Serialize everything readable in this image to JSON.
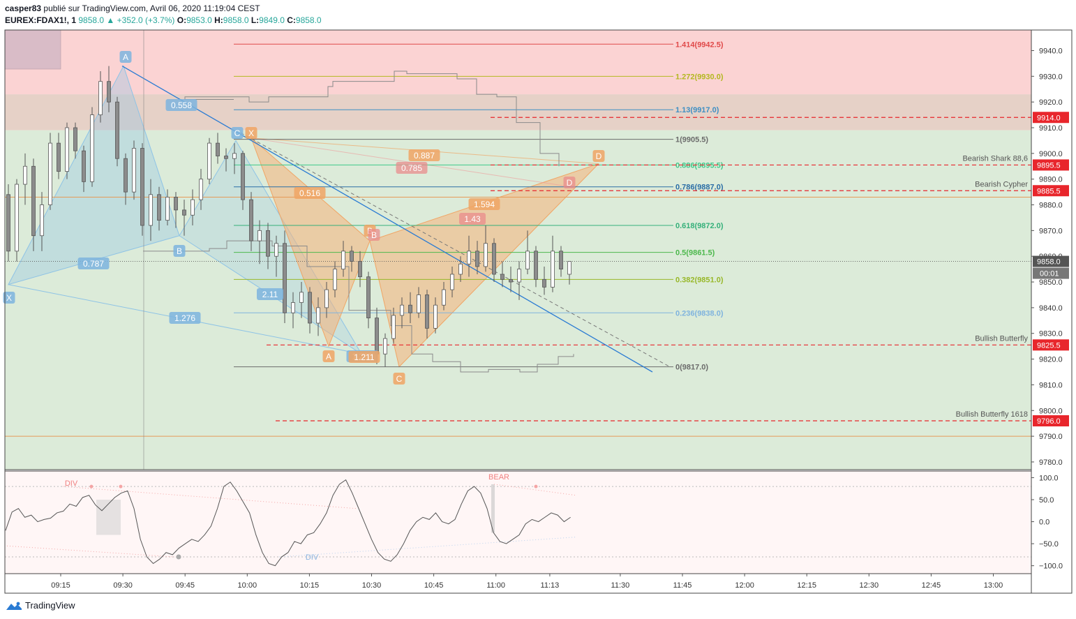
{
  "header": {
    "author": "casper83",
    "published_text": "publié sur TradingView.com, Avril 06, 2020 11:19:04 CEST",
    "symbol": "EUREX:FDAX1!, 1",
    "last": "9858.0",
    "change": "+352.0 (+3.7%)",
    "open_label": "O:",
    "open": "9853.0",
    "high_label": "H:",
    "high": "9858.0",
    "low_label": "L:",
    "low": "9849.0",
    "close_label": "C:",
    "close": "9858.0"
  },
  "footer": {
    "brand": "TradingView"
  },
  "colors": {
    "up": "#26a69a",
    "down": "#ef5350",
    "candle": "#8c8c8c",
    "red_zone": "#fbd3d3",
    "green_zone": "#dcebd9",
    "blue_pattern": "#8ec3e6",
    "orange_pattern": "#f5b27a",
    "trendline": "#2a7bd3",
    "price_tag": "#e8262c"
  },
  "chart_data": [
    {
      "type": "candlestick",
      "symbol": "EUREX:FDAX1!",
      "interval": "1",
      "x_ticks": [
        "09:15",
        "09:30",
        "09:45",
        "10:00",
        "10:15",
        "10:30",
        "10:45",
        "11:00",
        "11:13",
        "11:30",
        "11:45",
        "12:00",
        "12:15",
        "12:30",
        "12:45",
        "13:00"
      ],
      "y_ticks": [
        "9780.0",
        "9790.0",
        "9800.0",
        "9810.0",
        "9820.0",
        "9830.0",
        "9840.0",
        "9850.0",
        "9860.0",
        "9870.0",
        "9880.0",
        "9890.0",
        "9900.0",
        "9910.0",
        "9920.0",
        "9930.0",
        "9940.0"
      ],
      "ylim": [
        9777,
        9948
      ],
      "last_price": "9858.0",
      "countdown": "00:01",
      "candles": [
        {
          "t": "09:06",
          "o": 9884,
          "h": 9888,
          "l": 9858,
          "c": 9862
        },
        {
          "t": "09:08",
          "o": 9862,
          "h": 9890,
          "l": 9858,
          "c": 9888
        },
        {
          "t": "09:10",
          "o": 9888,
          "h": 9900,
          "l": 9880,
          "c": 9895
        },
        {
          "t": "09:12",
          "o": 9895,
          "h": 9898,
          "l": 9862,
          "c": 9868
        },
        {
          "t": "09:14",
          "o": 9868,
          "h": 9885,
          "l": 9862,
          "c": 9880
        },
        {
          "t": "09:16",
          "o": 9880,
          "h": 9908,
          "l": 9878,
          "c": 9904
        },
        {
          "t": "09:18",
          "o": 9904,
          "h": 9908,
          "l": 9890,
          "c": 9893
        },
        {
          "t": "09:20",
          "o": 9893,
          "h": 9912,
          "l": 9890,
          "c": 9910
        },
        {
          "t": "09:22",
          "o": 9910,
          "h": 9912,
          "l": 9898,
          "c": 9901
        },
        {
          "t": "09:24",
          "o": 9901,
          "h": 9903,
          "l": 9885,
          "c": 9889
        },
        {
          "t": "09:26",
          "o": 9889,
          "h": 9918,
          "l": 9887,
          "c": 9915
        },
        {
          "t": "09:28",
          "o": 9915,
          "h": 9932,
          "l": 9912,
          "c": 9928
        },
        {
          "t": "09:30",
          "o": 9928,
          "h": 9934,
          "l": 9916,
          "c": 9920
        },
        {
          "t": "09:32",
          "o": 9920,
          "h": 9922,
          "l": 9895,
          "c": 9898
        },
        {
          "t": "09:34",
          "o": 9898,
          "h": 9900,
          "l": 9880,
          "c": 9885
        },
        {
          "t": "09:36",
          "o": 9885,
          "h": 9905,
          "l": 9882,
          "c": 9902
        },
        {
          "t": "09:38",
          "o": 9902,
          "h": 9904,
          "l": 9868,
          "c": 9872
        },
        {
          "t": "09:40",
          "o": 9872,
          "h": 9890,
          "l": 9866,
          "c": 9884
        },
        {
          "t": "09:42",
          "o": 9884,
          "h": 9887,
          "l": 9870,
          "c": 9874
        },
        {
          "t": "09:44",
          "o": 9874,
          "h": 9886,
          "l": 9872,
          "c": 9883
        },
        {
          "t": "09:46",
          "o": 9883,
          "h": 9885,
          "l": 9871,
          "c": 9878
        },
        {
          "t": "09:48",
          "o": 9878,
          "h": 9882,
          "l": 9868,
          "c": 9876
        },
        {
          "t": "09:50",
          "o": 9876,
          "h": 9886,
          "l": 9872,
          "c": 9882
        },
        {
          "t": "09:52",
          "o": 9882,
          "h": 9894,
          "l": 9878,
          "c": 9890
        },
        {
          "t": "09:54",
          "o": 9890,
          "h": 9906,
          "l": 9888,
          "c": 9904
        },
        {
          "t": "09:56",
          "o": 9904,
          "h": 9908,
          "l": 9896,
          "c": 9899
        },
        {
          "t": "09:58",
          "o": 9899,
          "h": 9902,
          "l": 9893,
          "c": 9898
        },
        {
          "t": "10:00",
          "o": 9898,
          "h": 9904,
          "l": 9892,
          "c": 9900
        },
        {
          "t": "10:02",
          "o": 9900,
          "h": 9901,
          "l": 9878,
          "c": 9882
        },
        {
          "t": "10:04",
          "o": 9882,
          "h": 9885,
          "l": 9862,
          "c": 9866
        },
        {
          "t": "10:06",
          "o": 9866,
          "h": 9874,
          "l": 9857,
          "c": 9870
        },
        {
          "t": "10:08",
          "o": 9870,
          "h": 9873,
          "l": 9855,
          "c": 9860
        },
        {
          "t": "10:10",
          "o": 9860,
          "h": 9868,
          "l": 9852,
          "c": 9865
        },
        {
          "t": "10:12",
          "o": 9865,
          "h": 9870,
          "l": 9834,
          "c": 9838
        },
        {
          "t": "10:14",
          "o": 9838,
          "h": 9846,
          "l": 9832,
          "c": 9842
        },
        {
          "t": "10:16",
          "o": 9842,
          "h": 9850,
          "l": 9836,
          "c": 9846
        },
        {
          "t": "10:18",
          "o": 9846,
          "h": 9848,
          "l": 9830,
          "c": 9834
        },
        {
          "t": "10:20",
          "o": 9834,
          "h": 9844,
          "l": 9829,
          "c": 9840
        },
        {
          "t": "10:22",
          "o": 9840,
          "h": 9850,
          "l": 9836,
          "c": 9847
        },
        {
          "t": "10:24",
          "o": 9847,
          "h": 9858,
          "l": 9844,
          "c": 9855
        },
        {
          "t": "10:26",
          "o": 9855,
          "h": 9866,
          "l": 9852,
          "c": 9862
        },
        {
          "t": "10:28",
          "o": 9862,
          "h": 9864,
          "l": 9854,
          "c": 9858
        },
        {
          "t": "10:30",
          "o": 9858,
          "h": 9862,
          "l": 9848,
          "c": 9852
        },
        {
          "t": "10:32",
          "o": 9852,
          "h": 9854,
          "l": 9832,
          "c": 9836
        },
        {
          "t": "10:34",
          "o": 9836,
          "h": 9840,
          "l": 9818,
          "c": 9822
        },
        {
          "t": "10:36",
          "o": 9822,
          "h": 9830,
          "l": 9817,
          "c": 9828
        },
        {
          "t": "10:38",
          "o": 9828,
          "h": 9840,
          "l": 9826,
          "c": 9837
        },
        {
          "t": "10:40",
          "o": 9837,
          "h": 9844,
          "l": 9832,
          "c": 9841
        },
        {
          "t": "10:42",
          "o": 9841,
          "h": 9846,
          "l": 9834,
          "c": 9838
        },
        {
          "t": "10:44",
          "o": 9838,
          "h": 9848,
          "l": 9836,
          "c": 9845
        },
        {
          "t": "10:46",
          "o": 9845,
          "h": 9847,
          "l": 9828,
          "c": 9832
        },
        {
          "t": "10:48",
          "o": 9832,
          "h": 9844,
          "l": 9830,
          "c": 9841
        },
        {
          "t": "10:50",
          "o": 9841,
          "h": 9850,
          "l": 9839,
          "c": 9847
        },
        {
          "t": "10:52",
          "o": 9847,
          "h": 9856,
          "l": 9844,
          "c": 9853
        },
        {
          "t": "10:54",
          "o": 9853,
          "h": 9860,
          "l": 9850,
          "c": 9857
        },
        {
          "t": "10:56",
          "o": 9857,
          "h": 9868,
          "l": 9852,
          "c": 9862
        },
        {
          "t": "10:58",
          "o": 9862,
          "h": 9866,
          "l": 9853,
          "c": 9856
        },
        {
          "t": "11:00",
          "o": 9856,
          "h": 9872,
          "l": 9854,
          "c": 9865
        },
        {
          "t": "11:02",
          "o": 9865,
          "h": 9867,
          "l": 9850,
          "c": 9853
        },
        {
          "t": "11:04",
          "o": 9853,
          "h": 9858,
          "l": 9848,
          "c": 9851
        },
        {
          "t": "11:06",
          "o": 9851,
          "h": 9856,
          "l": 9846,
          "c": 9850
        },
        {
          "t": "11:08",
          "o": 9850,
          "h": 9858,
          "l": 9843,
          "c": 9855
        },
        {
          "t": "11:10",
          "o": 9855,
          "h": 9870,
          "l": 9853,
          "c": 9862
        },
        {
          "t": "11:12",
          "o": 9862,
          "h": 9864,
          "l": 9848,
          "c": 9851
        },
        {
          "t": "11:14",
          "o": 9851,
          "h": 9856,
          "l": 9845,
          "c": 9848
        },
        {
          "t": "11:16",
          "o": 9848,
          "h": 9868,
          "l": 9846,
          "c": 9862
        },
        {
          "t": "11:18",
          "o": 9862,
          "h": 9864,
          "l": 9852,
          "c": 9855
        },
        {
          "t": "11:19",
          "o": 9853,
          "h": 9858,
          "l": 9849,
          "c": 9858
        }
      ],
      "fib_levels": [
        {
          "label": "1.414(9942.5)",
          "value": 9942.5,
          "color": "#e04a4a"
        },
        {
          "label": "1.272(9930.0)",
          "value": 9930.0,
          "color": "#b3b81f"
        },
        {
          "label": "1.13(9917.0)",
          "value": 9917.0,
          "color": "#3d8fc4"
        },
        {
          "label": "1(9905.5)",
          "value": 9905.5,
          "color": "#6b6b6b"
        },
        {
          "label": "0.886(9895.5)",
          "value": 9895.5,
          "color": "#3fc98a"
        },
        {
          "label": "0.786(9887.0)",
          "value": 9887.0,
          "color": "#2b6ea6"
        },
        {
          "label": "0.618(9872.0)",
          "value": 9872.0,
          "color": "#35b07a"
        },
        {
          "label": "0.5(9861.5)",
          "value": 9861.5,
          "color": "#4cb84c"
        },
        {
          "label": "0.382(9851.0)",
          "value": 9851.0,
          "color": "#98b82a"
        },
        {
          "label": "0.236(9838.0)",
          "value": 9838.0,
          "color": "#7fb3de"
        },
        {
          "label": "0(9817.0)",
          "value": 9817.0,
          "color": "#6b6b6b"
        }
      ],
      "price_tags": [
        {
          "label": "9914.0",
          "value": 9914.0
        },
        {
          "label": "9895.5",
          "value": 9895.5,
          "note": "Bearish Shark 88,6"
        },
        {
          "label": "9885.5",
          "value": 9885.5,
          "note": "Bearish Cypher"
        },
        {
          "label": "9825.5",
          "value": 9825.5,
          "note": "Bullish Butterfly"
        },
        {
          "label": "9796.0",
          "value": 9796.0,
          "note": "Bullish Butterfly 1618"
        }
      ],
      "pattern_labels": {
        "blue": [
          "A",
          "B",
          "C",
          "X",
          "0.558",
          "0.787",
          "2.11",
          "1.276",
          "1.211"
        ],
        "orange": [
          "X",
          "A",
          "B",
          "C",
          "D",
          "0.887",
          "0.785",
          "0.516",
          "1.594",
          "1.43",
          "1.211",
          "D",
          "B"
        ]
      }
    },
    {
      "type": "line",
      "name": "",
      "y_ticks": [
        "100.0",
        "50.0",
        "0.0",
        "−50.0",
        "−100.0"
      ],
      "ylim": [
        -118,
        115
      ],
      "annotations": [
        "DIV",
        "DIV",
        "BEAR"
      ],
      "values": [
        -20,
        22,
        30,
        10,
        15,
        0,
        5,
        8,
        20,
        24,
        40,
        35,
        55,
        60,
        38,
        25,
        40,
        55,
        65,
        70,
        30,
        -40,
        -80,
        -95,
        -85,
        -70,
        -75,
        -60,
        -50,
        -40,
        -45,
        -30,
        -10,
        30,
        80,
        90,
        70,
        45,
        20,
        -30,
        -70,
        -95,
        -100,
        -80,
        -70,
        -45,
        -50,
        -30,
        -25,
        -5,
        20,
        60,
        85,
        95,
        65,
        30,
        -5,
        -40,
        -70,
        -85,
        -90,
        -75,
        -50,
        -20,
        0,
        10,
        5,
        20,
        0,
        -5,
        5,
        40,
        70,
        80,
        65,
        30,
        -25,
        -45,
        -50,
        -40,
        -30,
        -5,
        5,
        0,
        10,
        20,
        15,
        0,
        10
      ]
    }
  ]
}
